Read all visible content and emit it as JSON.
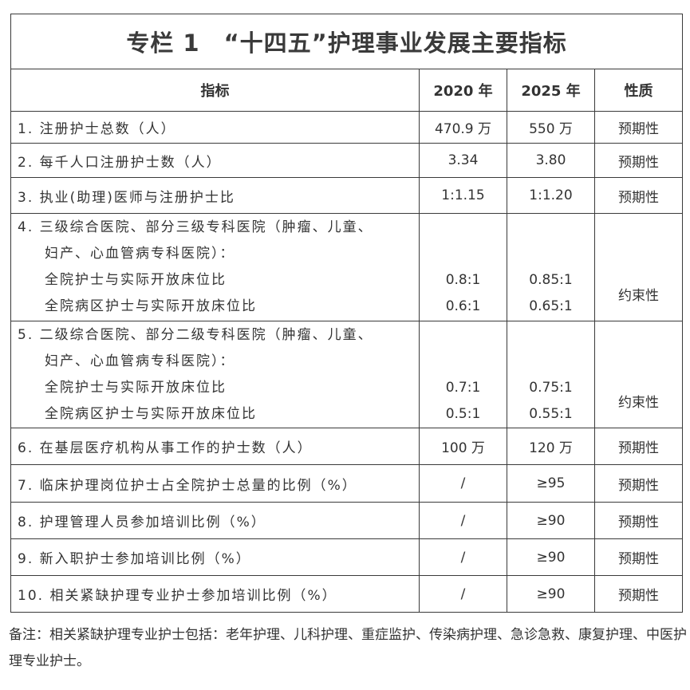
{
  "title": "专栏 1　“十四五”护理事业发展主要指标",
  "headers": [
    "指标",
    "2020 年",
    "2025 年",
    "性质"
  ],
  "rows": [
    {
      "indicator": "1. 注册护士总数（人）",
      "y2020": "470.9 万",
      "y2025": "550 万",
      "nature": "预期性"
    },
    {
      "indicator": "2. 每千人口注册护士数（人）",
      "y2020": "3.34",
      "y2025": "3.80",
      "nature": "预期性"
    },
    {
      "indicator": "3. 执业(助理)医师与注册护士比",
      "y2020": "1:1.15",
      "y2025": "1:1.20",
      "nature": "预期性"
    },
    {
      "indicator": "6. 在基层医疗机构从事工作的护士数（人）",
      "y2020": "100 万",
      "y2025": "120 万",
      "nature": "预期性"
    },
    {
      "indicator": "7. 临床护理岗位护士占全院护士总量的比例（%）",
      "y2020": "/",
      "y2025": "≥95",
      "nature": "预期性"
    },
    {
      "indicator": "8. 护理管理人员参加培训比例（%）",
      "y2020": "/",
      "y2025": "≥90",
      "nature": "预期性"
    },
    {
      "indicator": "9. 新入职护士参加培训比例（%）",
      "y2020": "/",
      "y2025": "≥90",
      "nature": "预期性"
    },
    {
      "indicator": "10. 相关紧缺护理专业护士参加培训比例（%）",
      "y2020": "/",
      "y2025": "≥90",
      "nature": "预期性"
    }
  ],
  "group_rows": [
    {
      "line1": "4. 三级综合医院、部分三级专科医院（肿瘤、儿童、",
      "line2": "妇产、心血管病专科医院）：",
      "sub": [
        {
          "label": "全院护士与实际开放床位比",
          "y2020": "0.8:1",
          "y2025": "0.85:1"
        },
        {
          "label": "全院病区护士与实际开放床位比",
          "y2020": "0.6:1",
          "y2025": "0.65:1"
        }
      ],
      "nature": "约束性"
    },
    {
      "line1": "5. 二级综合医院、部分二级专科医院（肿瘤、儿童、",
      "line2": "妇产、心血管病专科医院）：",
      "sub": [
        {
          "label": "全院护士与实际开放床位比",
          "y2020": "0.7:1",
          "y2025": "0.75:1"
        },
        {
          "label": "全院病区护士与实际开放床位比",
          "y2020": "0.5:1",
          "y2025": "0.55:1"
        }
      ],
      "nature": "约束性"
    }
  ],
  "note": "备注：相关紧缺护理专业护士包括：老年护理、儿科护理、重症监护、传染病护理、急诊急救、康复护理、中医护理专业护士。"
}
